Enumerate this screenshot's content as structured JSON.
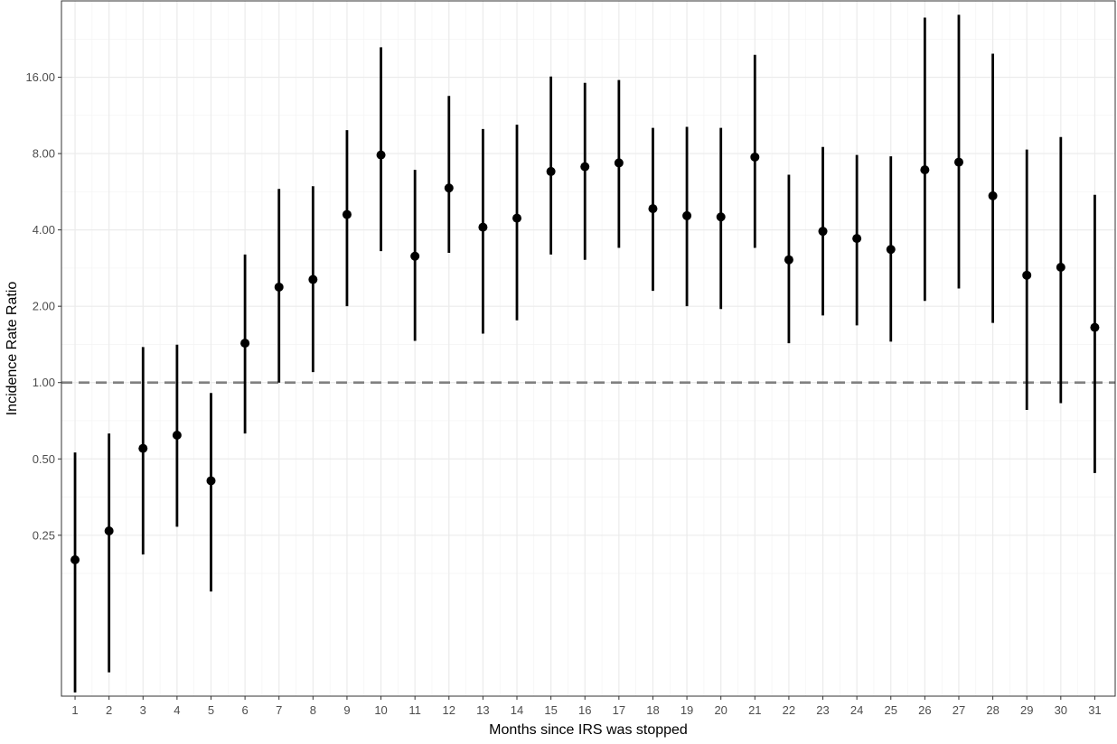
{
  "chart_data": {
    "type": "scatter",
    "subtype": "point-range",
    "title": "",
    "xlabel": "Months since IRS was stopped",
    "ylabel": "Incidence Rate Ratio",
    "yscale": "log2",
    "ylim": [
      0.058,
      32
    ],
    "xlim": [
      0.6,
      31.6
    ],
    "y_ticks": [
      0.25,
      0.5,
      1,
      2,
      4,
      8,
      16
    ],
    "y_tick_labels": [
      "0.25",
      "0.50",
      "1.00",
      "2.00",
      "4.00",
      "8.00",
      "16.00"
    ],
    "x_ticks": [
      1,
      2,
      3,
      4,
      5,
      6,
      7,
      8,
      9,
      10,
      11,
      12,
      13,
      14,
      15,
      16,
      17,
      18,
      19,
      20,
      21,
      22,
      23,
      24,
      25,
      26,
      27,
      28,
      29,
      30,
      31
    ],
    "x_tick_labels": [
      "1",
      "2",
      "3",
      "4",
      "5",
      "6",
      "7",
      "8",
      "9",
      "10",
      "11",
      "12",
      "13",
      "14",
      "15",
      "16",
      "17",
      "18",
      "19",
      "20",
      "21",
      "22",
      "23",
      "24",
      "25",
      "26",
      "27",
      "28",
      "29",
      "30",
      "31"
    ],
    "reference_line": {
      "y": 1,
      "style": "dashed",
      "color": "#808080"
    },
    "grid": true,
    "theme": "bw",
    "point_color": "#000000",
    "points": [
      {
        "x": 1,
        "y": 0.2,
        "lower": 0.06,
        "upper": 0.53
      },
      {
        "x": 2,
        "y": 0.26,
        "lower": 0.072,
        "upper": 0.63
      },
      {
        "x": 3,
        "y": 0.55,
        "lower": 0.21,
        "upper": 1.38
      },
      {
        "x": 4,
        "y": 0.62,
        "lower": 0.27,
        "upper": 1.41
      },
      {
        "x": 5,
        "y": 0.41,
        "lower": 0.15,
        "upper": 0.91
      },
      {
        "x": 6,
        "y": 1.43,
        "lower": 0.63,
        "upper": 3.2
      },
      {
        "x": 7,
        "y": 2.38,
        "lower": 1.0,
        "upper": 5.8
      },
      {
        "x": 8,
        "y": 2.55,
        "lower": 1.1,
        "upper": 5.95
      },
      {
        "x": 9,
        "y": 4.6,
        "lower": 2.0,
        "upper": 9.9
      },
      {
        "x": 10,
        "y": 7.9,
        "lower": 3.3,
        "upper": 21.0
      },
      {
        "x": 11,
        "y": 3.15,
        "lower": 1.46,
        "upper": 6.9
      },
      {
        "x": 12,
        "y": 5.85,
        "lower": 3.25,
        "upper": 13.5
      },
      {
        "x": 13,
        "y": 4.1,
        "lower": 1.56,
        "upper": 10.0
      },
      {
        "x": 14,
        "y": 4.45,
        "lower": 1.76,
        "upper": 10.4
      },
      {
        "x": 15,
        "y": 6.8,
        "lower": 3.2,
        "upper": 16.1
      },
      {
        "x": 16,
        "y": 7.1,
        "lower": 3.05,
        "upper": 15.2
      },
      {
        "x": 17,
        "y": 7.35,
        "lower": 3.4,
        "upper": 15.6
      },
      {
        "x": 18,
        "y": 4.85,
        "lower": 2.3,
        "upper": 10.1
      },
      {
        "x": 19,
        "y": 4.55,
        "lower": 2.0,
        "upper": 10.2
      },
      {
        "x": 20,
        "y": 4.5,
        "lower": 1.95,
        "upper": 10.1
      },
      {
        "x": 21,
        "y": 7.75,
        "lower": 3.4,
        "upper": 19.6
      },
      {
        "x": 22,
        "y": 3.05,
        "lower": 1.43,
        "upper": 6.6
      },
      {
        "x": 23,
        "y": 3.95,
        "lower": 1.84,
        "upper": 8.5
      },
      {
        "x": 24,
        "y": 3.7,
        "lower": 1.68,
        "upper": 7.9
      },
      {
        "x": 25,
        "y": 3.35,
        "lower": 1.45,
        "upper": 7.8
      },
      {
        "x": 26,
        "y": 6.9,
        "lower": 2.1,
        "upper": 27.5
      },
      {
        "x": 27,
        "y": 7.4,
        "lower": 2.35,
        "upper": 28.2
      },
      {
        "x": 28,
        "y": 5.45,
        "lower": 1.72,
        "upper": 19.8
      },
      {
        "x": 29,
        "y": 2.65,
        "lower": 0.78,
        "upper": 8.3
      },
      {
        "x": 30,
        "y": 2.85,
        "lower": 0.83,
        "upper": 9.3
      },
      {
        "x": 31,
        "y": 1.65,
        "lower": 0.44,
        "upper": 5.5
      }
    ]
  }
}
